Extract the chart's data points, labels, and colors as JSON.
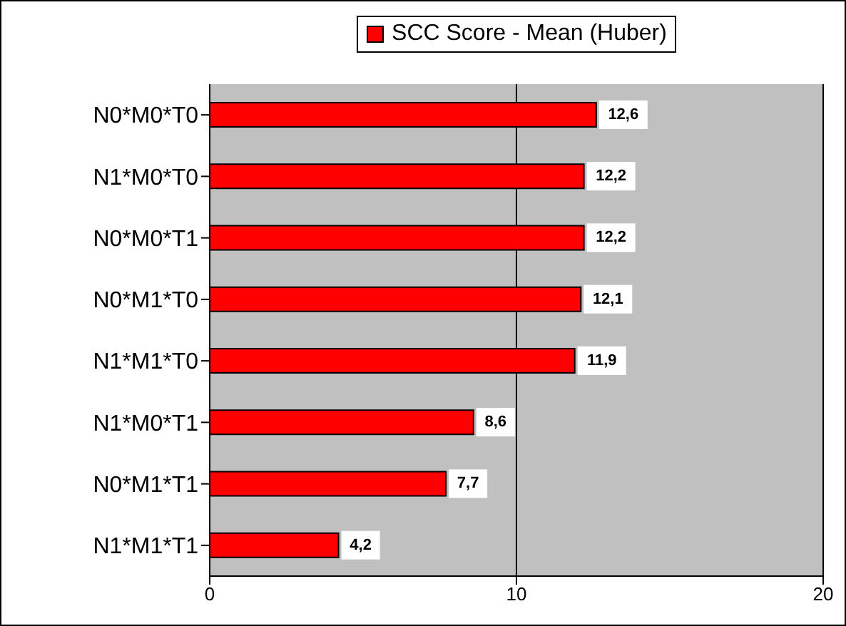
{
  "chart_data": {
    "type": "bar",
    "orientation": "horizontal",
    "categories": [
      "N0*M0*T0",
      "N1*M0*T0",
      "N0*M0*T1",
      "N0*M1*T0",
      "N1*M1*T0",
      "N1*M0*T1",
      "N0*M1*T1",
      "N1*M1*T1"
    ],
    "series": [
      {
        "name": "SCC Score - Mean (Huber)",
        "color": "#ff0000",
        "values": [
          12.6,
          12.2,
          12.2,
          12.1,
          11.9,
          8.6,
          7.7,
          4.2
        ],
        "value_labels": [
          "12,6",
          "12,2",
          "12,2",
          "12,1",
          "11,9",
          "8,6",
          "7,7",
          "4,2"
        ]
      }
    ],
    "xlim": [
      0,
      20
    ],
    "xticks": [
      0,
      10,
      20
    ],
    "grid": "x",
    "legend": "top"
  }
}
